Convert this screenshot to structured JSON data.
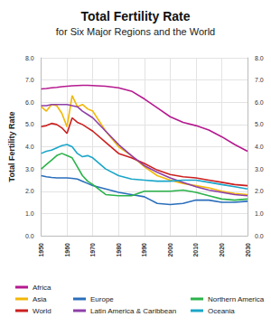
{
  "chart_data": {
    "type": "line",
    "title": "Total Fertility Rate",
    "subtitle": "for Six Major Regions and the World",
    "y_label": "Total Fertility Rate",
    "x": [
      1950,
      1952,
      1954,
      1956,
      1958,
      1960,
      1962,
      1964,
      1966,
      1968,
      1970,
      1975,
      1980,
      1985,
      1990,
      1995,
      2000,
      2005,
      2010,
      2015,
      2020,
      2025,
      2030
    ],
    "series": [
      {
        "name": "Africa",
        "color": "#b5198f",
        "values": [
          6.6,
          6.62,
          6.65,
          6.67,
          6.7,
          6.72,
          6.74,
          6.75,
          6.76,
          6.76,
          6.75,
          6.72,
          6.65,
          6.5,
          6.15,
          5.75,
          5.35,
          5.1,
          4.95,
          4.75,
          4.45,
          4.1,
          3.8
        ]
      },
      {
        "name": "Asia",
        "color": "#f2b705",
        "values": [
          5.8,
          5.6,
          5.9,
          5.85,
          5.5,
          4.9,
          6.3,
          5.8,
          5.9,
          5.7,
          5.6,
          4.7,
          4.0,
          3.6,
          3.1,
          2.7,
          2.5,
          2.35,
          2.25,
          2.15,
          2.0,
          1.9,
          1.85
        ]
      },
      {
        "name": "World",
        "color": "#cc1f1f",
        "values": [
          4.9,
          4.95,
          5.05,
          5.0,
          4.85,
          4.6,
          5.3,
          5.1,
          5.0,
          4.85,
          4.7,
          4.2,
          3.7,
          3.5,
          3.25,
          2.95,
          2.75,
          2.65,
          2.6,
          2.5,
          2.4,
          2.3,
          2.25
        ]
      },
      {
        "name": "Europe",
        "color": "#2a6ebb",
        "values": [
          2.7,
          2.65,
          2.62,
          2.6,
          2.6,
          2.6,
          2.58,
          2.55,
          2.45,
          2.35,
          2.25,
          2.1,
          1.95,
          1.85,
          1.75,
          1.45,
          1.4,
          1.45,
          1.6,
          1.6,
          1.5,
          1.5,
          1.55
        ]
      },
      {
        "name": "Latin America & Caribbean",
        "color": "#8e3fa8",
        "values": [
          5.85,
          5.85,
          5.9,
          5.9,
          5.9,
          5.9,
          5.85,
          5.8,
          5.6,
          5.45,
          5.3,
          4.7,
          4.1,
          3.6,
          3.15,
          2.85,
          2.6,
          2.4,
          2.2,
          2.05,
          1.95,
          1.85,
          1.8
        ]
      },
      {
        "name": "Northern America",
        "color": "#2bb34a",
        "values": [
          3.0,
          3.2,
          3.4,
          3.6,
          3.7,
          3.6,
          3.5,
          3.1,
          2.7,
          2.45,
          2.3,
          1.85,
          1.8,
          1.8,
          2.0,
          2.0,
          2.0,
          2.05,
          1.95,
          1.8,
          1.65,
          1.6,
          1.65
        ]
      },
      {
        "name": "Oceania",
        "color": "#1aa6c9",
        "values": [
          3.7,
          3.8,
          3.85,
          3.95,
          4.05,
          4.1,
          4.0,
          3.7,
          3.55,
          3.6,
          3.5,
          3.0,
          2.7,
          2.55,
          2.5,
          2.45,
          2.45,
          2.5,
          2.5,
          2.4,
          2.3,
          2.2,
          2.1
        ]
      }
    ],
    "xlim": [
      1950,
      2030
    ],
    "xticks": [
      1950,
      1960,
      1970,
      1980,
      1990,
      2000,
      2010,
      2020,
      2030
    ],
    "ylim": [
      0,
      8
    ],
    "yticks": [
      {
        "value": 0,
        "label": "0.0"
      },
      {
        "value": 1,
        "label": "1.0"
      },
      {
        "value": 2,
        "label": "2.0"
      },
      {
        "value": 3,
        "label": "3.0"
      },
      {
        "value": 4,
        "label": "4.0"
      },
      {
        "value": 5,
        "label": "5.0"
      },
      {
        "value": 6,
        "label": "6.0"
      },
      {
        "value": 7,
        "label": "7.0"
      },
      {
        "value": 8,
        "label": "8.0"
      }
    ],
    "y2lim": [
      0,
      8
    ],
    "y2ticks": [
      {
        "value": 0,
        "label": "0.0"
      },
      {
        "value": 1,
        "label": "1.0"
      },
      {
        "value": 2,
        "label": "2.0"
      },
      {
        "value": 3,
        "label": "3.0"
      },
      {
        "value": 4,
        "label": "4.0"
      },
      {
        "value": 5,
        "label": "5.0"
      },
      {
        "value": 6,
        "label": "6.0"
      },
      {
        "value": 7,
        "label": "7.0"
      },
      {
        "value": 8,
        "label": "8.0"
      }
    ],
    "grid": true,
    "legend": "bottom"
  }
}
